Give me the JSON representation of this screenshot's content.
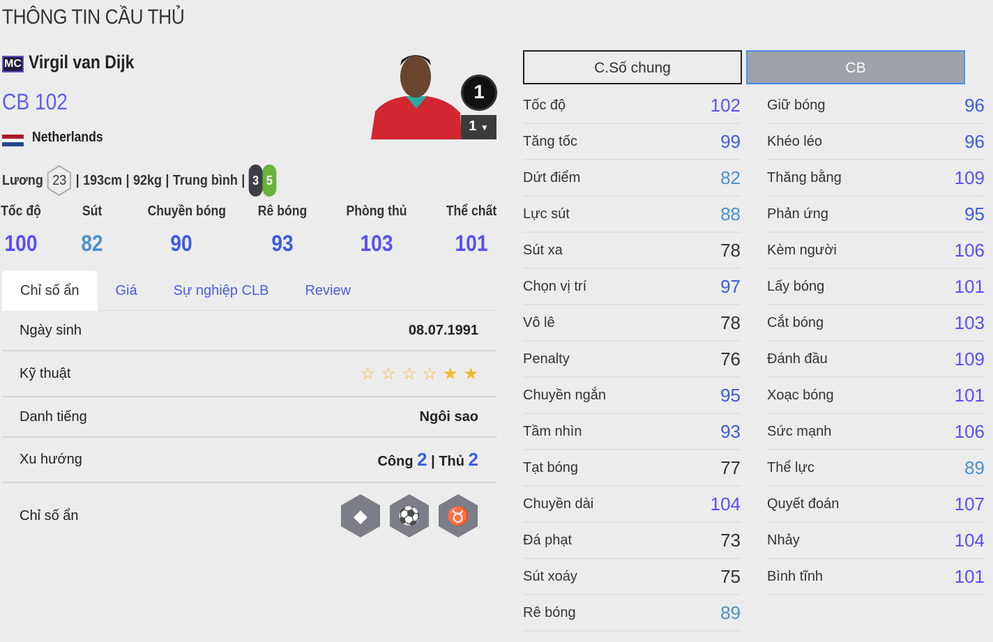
{
  "page_title": "THÔNG TIN CẦU THỦ",
  "player": {
    "season_badge": "MC",
    "name": "Virgil van Dijk",
    "position_rating": "CB 102",
    "nation": "Netherlands",
    "wage_label": "Lương",
    "wage": "23",
    "height": "193cm",
    "weight": "92kg",
    "body_type": "Trung bình",
    "weak_foot": "3",
    "strong_foot": "5",
    "rank": "1",
    "upgrade_level": "1"
  },
  "main_stats": [
    {
      "label": "Tốc độ",
      "value": "100"
    },
    {
      "label": "Sút",
      "value": "82"
    },
    {
      "label": "Chuyền bóng",
      "value": "90"
    },
    {
      "label": "Rê bóng",
      "value": "93"
    },
    {
      "label": "Phòng thủ",
      "value": "103"
    },
    {
      "label": "Thể chất",
      "value": "101"
    }
  ],
  "tabs": [
    {
      "label": "Chỉ số ẩn",
      "active": true
    },
    {
      "label": "Giá"
    },
    {
      "label": "Sự nghiệp CLB"
    },
    {
      "label": "Review"
    }
  ],
  "info": {
    "birth_label": "Ngày sinh",
    "birth": "08.07.1991",
    "skill_label": "Kỹ thuật",
    "skill_stars": 2,
    "skill_stars_max": 6,
    "reputation_label": "Danh tiếng",
    "reputation": "Ngôi sao",
    "work_rate_label": "Xu hướng",
    "attack_label": "Công",
    "attack": "2",
    "defense_label": "Thủ",
    "defense": "2",
    "traits_label": "Chỉ số ẩn",
    "traits": [
      "diamond-icon",
      "long-ball-icon",
      "buffalo-icon"
    ]
  },
  "stat_tabs": {
    "general": "C.Số chung",
    "position": "CB"
  },
  "stats_left": [
    [
      "Tốc độ",
      "102"
    ],
    [
      "Tăng tốc",
      "99"
    ],
    [
      "Dứt điểm",
      "82"
    ],
    [
      "Lực sút",
      "88"
    ],
    [
      "Sút xa",
      "78"
    ],
    [
      "Chọn vị trí",
      "97"
    ],
    [
      "Vô lê",
      "78"
    ],
    [
      "Penalty",
      "76"
    ],
    [
      "Chuyền ngắn",
      "95"
    ],
    [
      "Tầm nhìn",
      "93"
    ],
    [
      "Tạt bóng",
      "77"
    ],
    [
      "Chuyền dài",
      "104"
    ],
    [
      "Đá phạt",
      "73"
    ],
    [
      "Sút xoáy",
      "75"
    ],
    [
      "Rê bóng",
      "89"
    ]
  ],
  "stats_right": [
    [
      "Giữ bóng",
      "96"
    ],
    [
      "Khéo léo",
      "96"
    ],
    [
      "Thăng bằng",
      "109"
    ],
    [
      "Phản ứng",
      "95"
    ],
    [
      "Kèm người",
      "106"
    ],
    [
      "Lấy bóng",
      "101"
    ],
    [
      "Cắt bóng",
      "103"
    ],
    [
      "Đánh đầu",
      "109"
    ],
    [
      "Xoạc bóng",
      "101"
    ],
    [
      "Sức mạnh",
      "106"
    ],
    [
      "Thể lực",
      "89"
    ],
    [
      "Quyết đoán",
      "107"
    ],
    [
      "Nhảy",
      "104"
    ],
    [
      "Bình tĩnh",
      "101"
    ]
  ],
  "colors": {
    "tier_100": "#5b4ef5",
    "tier_90": "#3d5be0",
    "tier_80": "#4d90cf",
    "tier_low": "#333333",
    "foot_weak": "#3d3f45",
    "foot_strong": "#6ab23a"
  }
}
